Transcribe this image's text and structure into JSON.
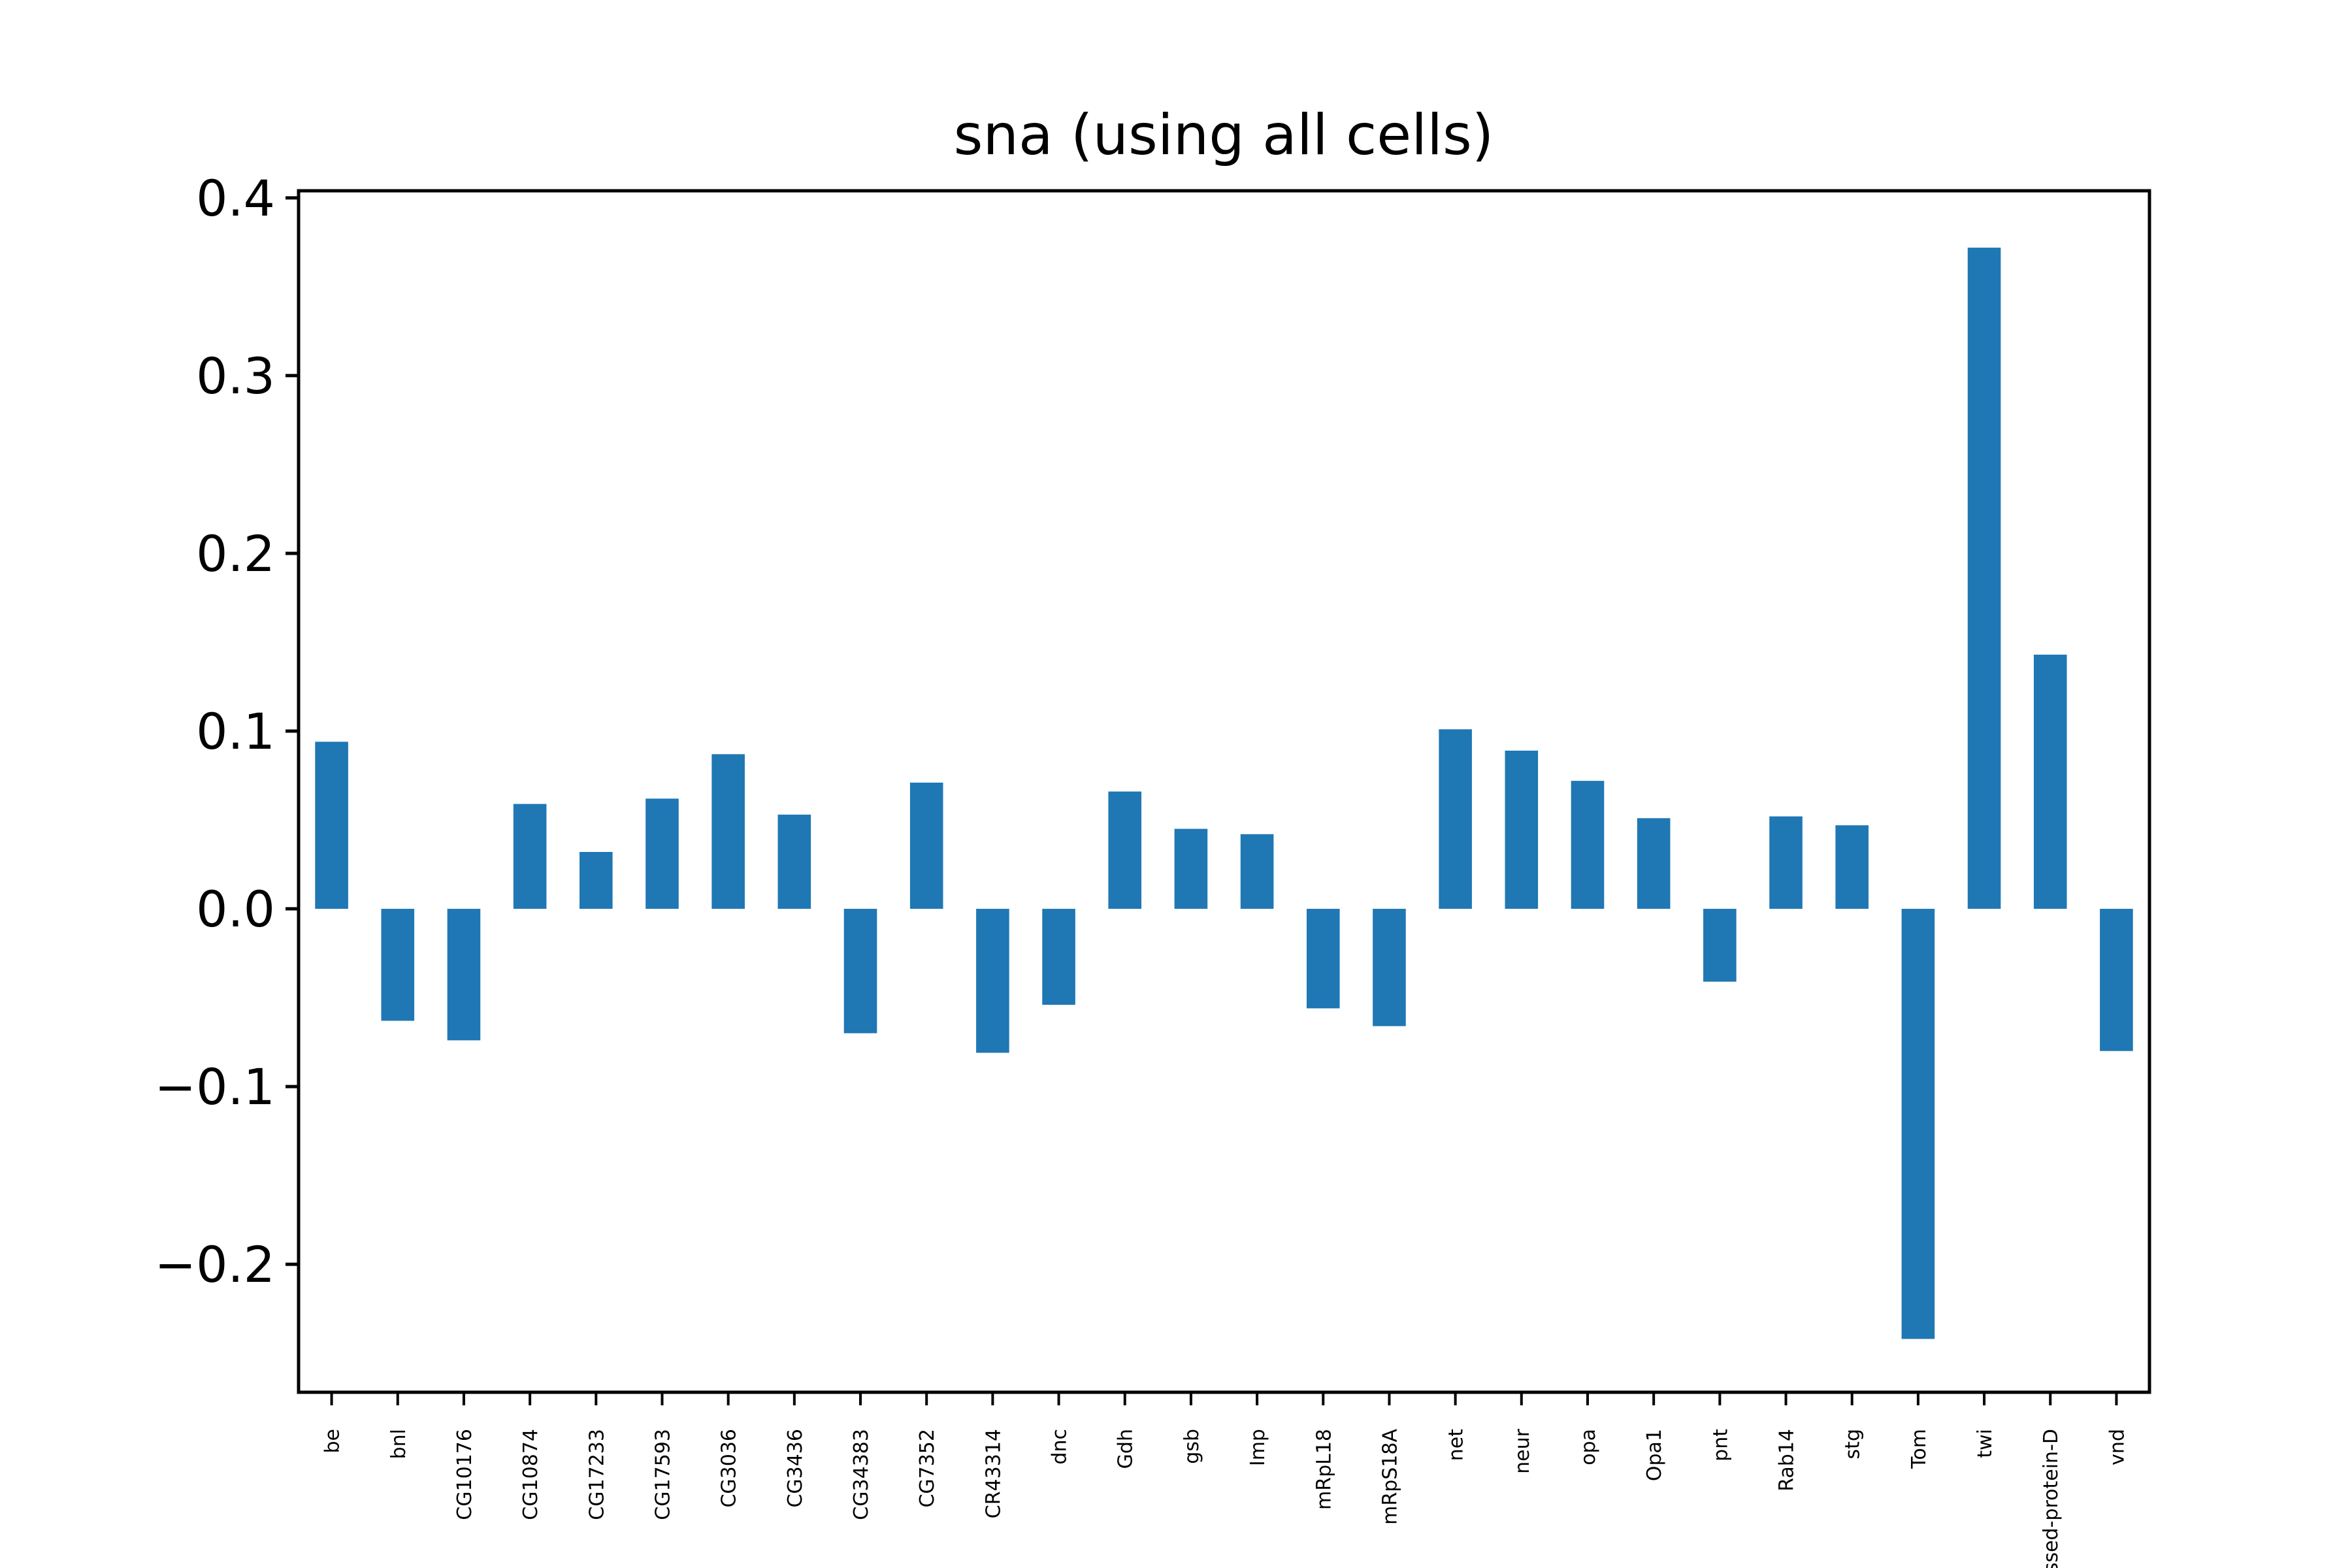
{
  "chart_data": {
    "type": "bar",
    "title": "sna (using all cells)",
    "xlabel": "",
    "ylabel": "",
    "ylim": [
      -0.272,
      0.404
    ],
    "yticks": [
      -0.2,
      -0.1,
      0.0,
      0.1,
      0.2,
      0.3,
      0.4
    ],
    "ytick_labels": [
      "−0.2",
      "−0.1",
      "0.0",
      "0.1",
      "0.2",
      "0.3",
      "0.4"
    ],
    "categories": [
      "be",
      "bnl",
      "CG10176",
      "CG10874",
      "CG17233",
      "CG17593",
      "CG3036",
      "CG3436",
      "CG34383",
      "CG7352",
      "CR43314",
      "dnc",
      "Gdh",
      "gsb",
      "Imp",
      "mRpL18",
      "mRpS18A",
      "net",
      "neur",
      "opa",
      "Opa1",
      "pnt",
      "Rab14",
      "stg",
      "Tom",
      "twi",
      "ssed-protein-D",
      "vnd"
    ],
    "values": [
      0.094,
      -0.063,
      -0.074,
      0.059,
      0.032,
      0.062,
      0.087,
      0.053,
      -0.07,
      0.071,
      -0.081,
      -0.054,
      0.066,
      0.045,
      0.042,
      -0.056,
      -0.066,
      0.101,
      0.089,
      0.072,
      0.051,
      -0.041,
      0.052,
      0.047,
      -0.242,
      0.372,
      0.143,
      -0.08
    ],
    "bar_color": "#1f77b4",
    "grid": false,
    "legend": "none"
  }
}
